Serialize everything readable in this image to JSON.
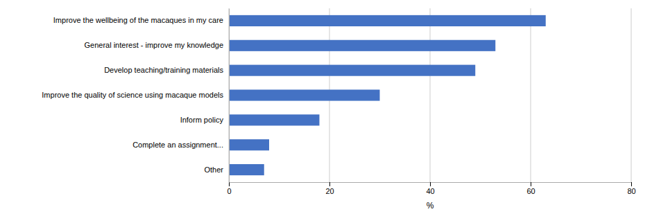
{
  "chart_data": {
    "type": "bar",
    "orientation": "horizontal",
    "categories": [
      "Other",
      "Complete an assignment...",
      "Inform policy",
      "Improve the quality of science using macaque models",
      "Develop teaching/training materials",
      "General interest - improve my knowledge",
      "Improve the wellbeing of the macaques in my care"
    ],
    "values": [
      7,
      8,
      18,
      30,
      49,
      53,
      63
    ],
    "color": "#4472C4",
    "xlabel": "%",
    "xlim": [
      0,
      80
    ],
    "xticks": [
      0,
      20,
      40,
      60,
      80
    ],
    "grid": true
  }
}
